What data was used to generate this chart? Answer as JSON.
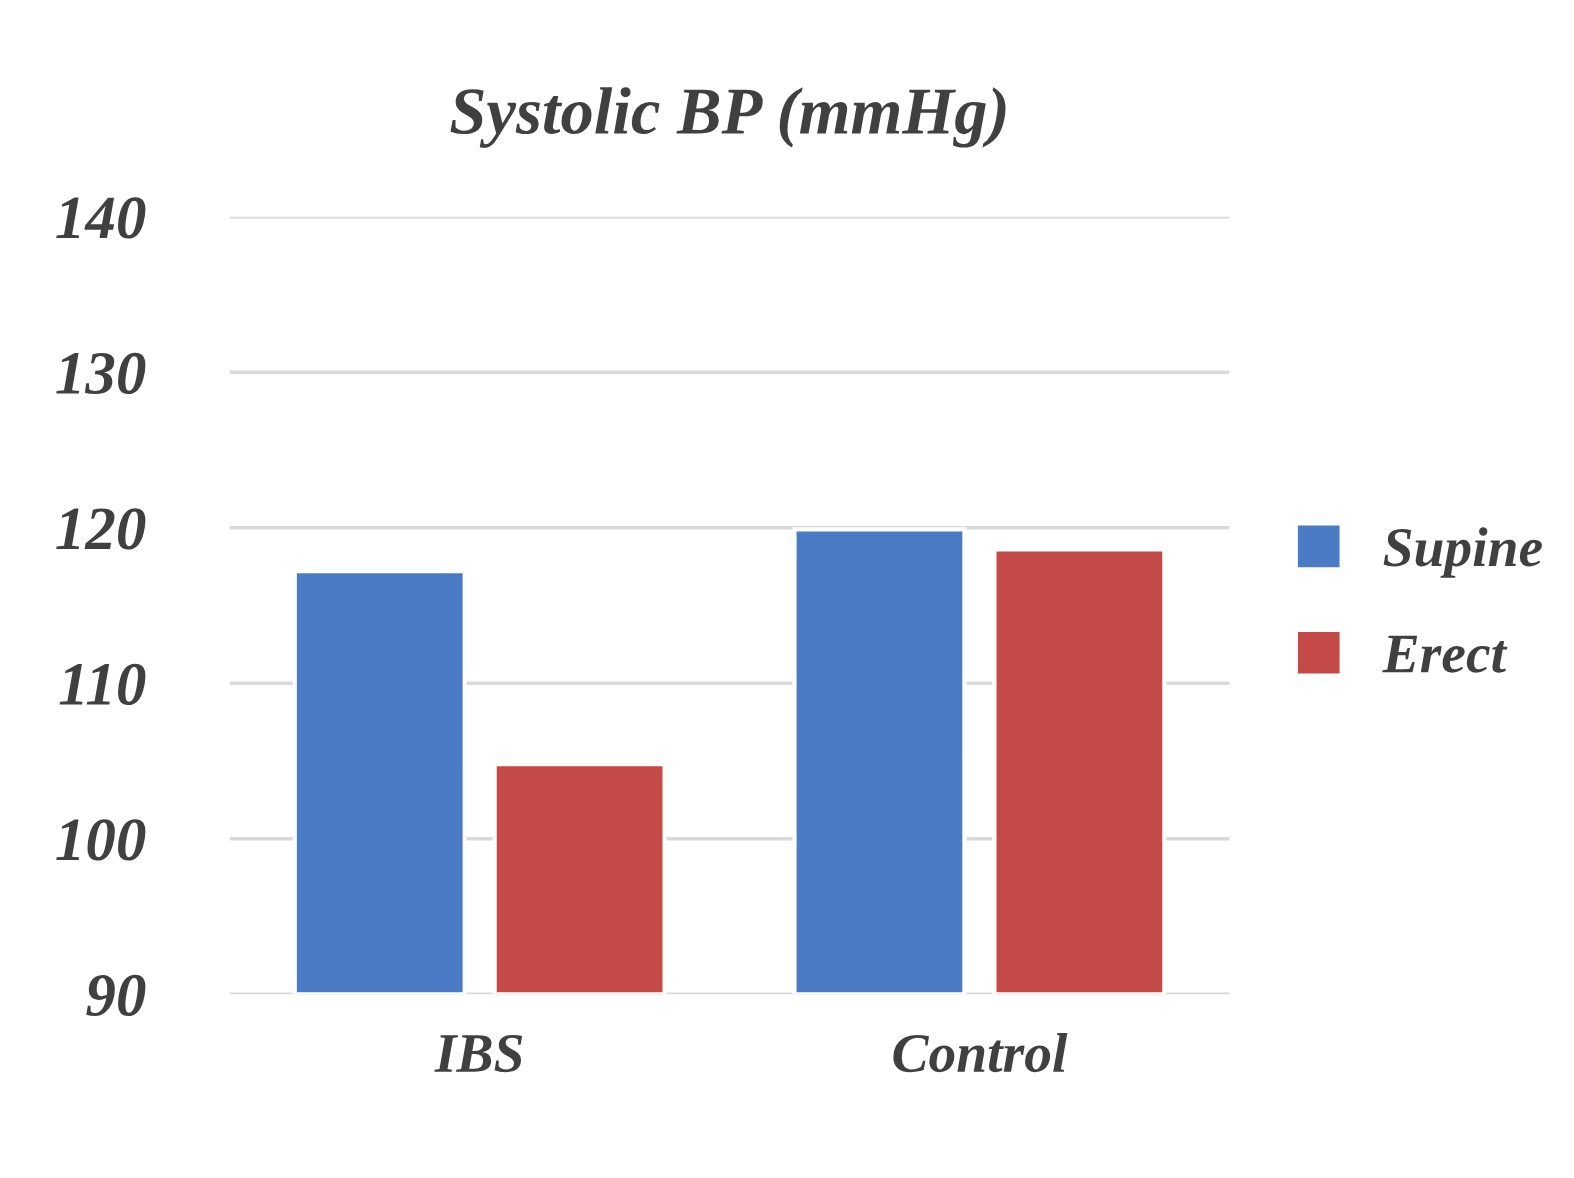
{
  "chart_data": {
    "type": "bar",
    "title": "Systolic BP (mmHg)",
    "categories": [
      "IBS",
      "Control"
    ],
    "series": [
      {
        "name": "Supine",
        "color": "#4a7bc4",
        "values": [
          117.2,
          119.9
        ]
      },
      {
        "name": "Erect",
        "color": "#c44a47",
        "values": [
          104.8,
          118.6
        ]
      }
    ],
    "ylim": [
      90,
      140
    ],
    "yticks": [
      90,
      100,
      110,
      120,
      130,
      140
    ],
    "grid": "y",
    "legend": "right"
  }
}
